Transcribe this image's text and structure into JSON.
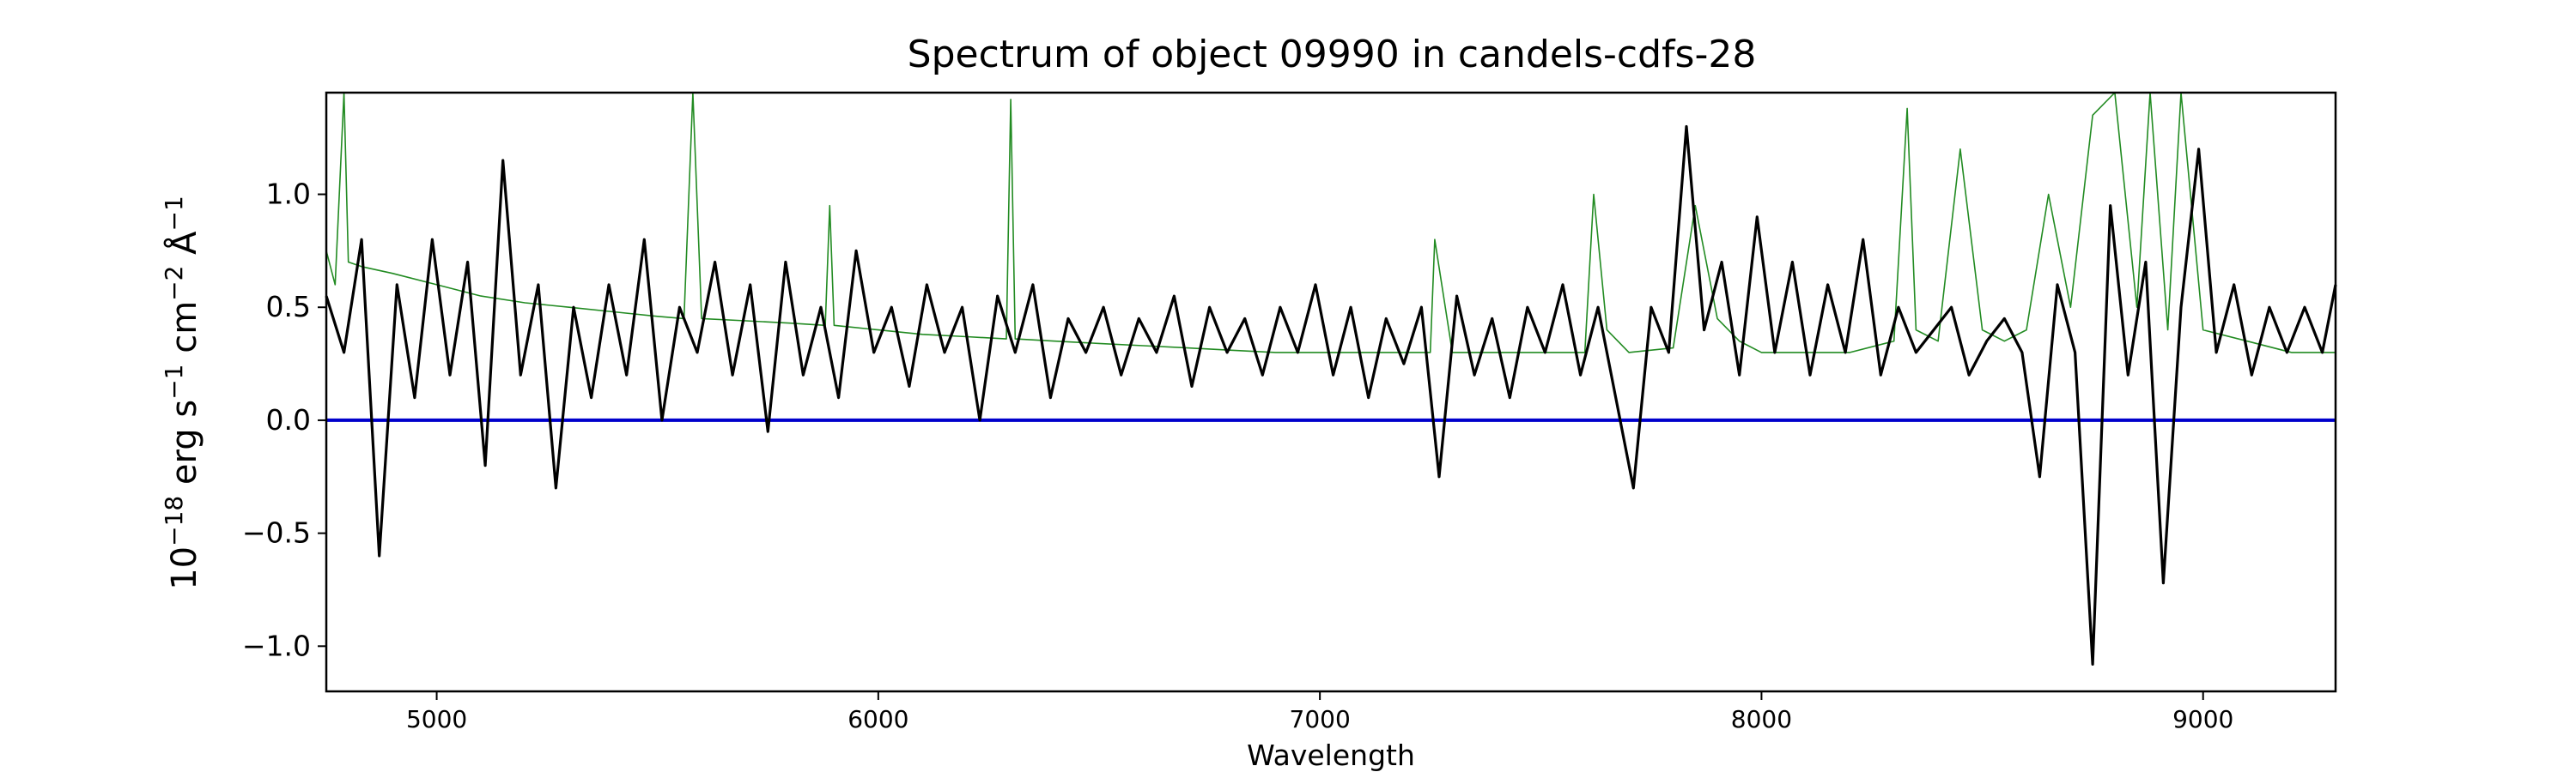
{
  "chart_data": {
    "type": "line",
    "title": "Spectrum of object 09990 in candels-cdfs-28",
    "xlabel": "Wavelength",
    "ylabel": {
      "base": "10",
      "exp1": "−18",
      "unit1": " erg s",
      "exp2": "−1",
      "unit2": " cm",
      "exp3": "−2",
      "unit3": " Å",
      "exp4": "−1"
    },
    "xlim": [
      4750,
      9300
    ],
    "ylim": [
      -1.2,
      1.45
    ],
    "x_ticks": [
      5000,
      6000,
      7000,
      8000,
      9000
    ],
    "x_tick_labels": [
      "5000",
      "6000",
      "7000",
      "8000",
      "9000"
    ],
    "y_ticks": [
      -1.0,
      -0.5,
      0.0,
      0.5,
      1.0
    ],
    "y_tick_labels": [
      "−1.0",
      "−0.5",
      "0.0",
      "0.5",
      "1.0"
    ],
    "grid": false,
    "colors": {
      "flux": "#000000",
      "error": "#228B22",
      "zero": "#0000CC"
    },
    "series": [
      {
        "role": "flux",
        "x": [
          4750,
          4790,
          4830,
          4870,
          4910,
          4950,
          4990,
          5030,
          5070,
          5110,
          5150,
          5190,
          5230,
          5270,
          5310,
          5350,
          5390,
          5430,
          5470,
          5510,
          5550,
          5590,
          5630,
          5670,
          5710,
          5750,
          5790,
          5830,
          5870,
          5910,
          5950,
          5990,
          6030,
          6070,
          6110,
          6150,
          6190,
          6230,
          6270,
          6310,
          6350,
          6390,
          6430,
          6470,
          6510,
          6550,
          6590,
          6630,
          6670,
          6710,
          6750,
          6790,
          6830,
          6870,
          6910,
          6950,
          6990,
          7030,
          7070,
          7110,
          7150,
          7190,
          7230,
          7270,
          7310,
          7350,
          7390,
          7430,
          7470,
          7510,
          7550,
          7590,
          7630,
          7670,
          7710,
          7750,
          7790,
          7830,
          7870,
          7910,
          7950,
          7990,
          8030,
          8070,
          8110,
          8150,
          8190,
          8230,
          8270,
          8310,
          8350,
          8390,
          8430,
          8470,
          8510,
          8550,
          8590,
          8630,
          8670,
          8710,
          8750,
          8790,
          8830,
          8870,
          8910,
          8950,
          8990,
          9030,
          9070,
          9110,
          9150,
          9190,
          9230,
          9270,
          9300
        ],
        "y": [
          0.55,
          0.3,
          0.8,
          -0.6,
          0.6,
          0.1,
          0.8,
          0.2,
          0.7,
          -0.2,
          1.15,
          0.2,
          0.6,
          -0.3,
          0.5,
          0.1,
          0.6,
          0.2,
          0.8,
          0.0,
          0.5,
          0.3,
          0.7,
          0.2,
          0.6,
          -0.05,
          0.7,
          0.2,
          0.5,
          0.1,
          0.75,
          0.3,
          0.5,
          0.15,
          0.6,
          0.3,
          0.5,
          0.0,
          0.55,
          0.3,
          0.6,
          0.1,
          0.45,
          0.3,
          0.5,
          0.2,
          0.45,
          0.3,
          0.55,
          0.15,
          0.5,
          0.3,
          0.45,
          0.2,
          0.5,
          0.3,
          0.6,
          0.2,
          0.5,
          0.1,
          0.45,
          0.25,
          0.5,
          -0.25,
          0.55,
          0.2,
          0.45,
          0.1,
          0.5,
          0.3,
          0.6,
          0.2,
          0.5,
          0.1,
          -0.3,
          0.5,
          0.3,
          1.3,
          0.4,
          0.7,
          0.2,
          0.9,
          0.3,
          0.7,
          0.2,
          0.6,
          0.3,
          0.8,
          0.2,
          0.5,
          0.3,
          0.4,
          0.5,
          0.2,
          0.35,
          0.45,
          0.3,
          -0.25,
          0.6,
          0.3,
          -1.08,
          0.95,
          0.2,
          0.7,
          -0.72,
          0.5,
          1.2,
          0.3,
          0.6,
          0.2,
          0.5,
          0.3,
          0.5,
          0.3,
          0.6
        ]
      },
      {
        "role": "error",
        "x": [
          4750,
          4770,
          4790,
          4800,
          4830,
          4900,
          5000,
          5100,
          5200,
          5300,
          5400,
          5500,
          5560,
          5580,
          5600,
          5700,
          5800,
          5880,
          5890,
          5900,
          6000,
          6100,
          6200,
          6290,
          6300,
          6310,
          6400,
          6500,
          6600,
          6700,
          6800,
          6900,
          7000,
          7100,
          7200,
          7250,
          7260,
          7300,
          7400,
          7500,
          7600,
          7620,
          7650,
          7700,
          7800,
          7850,
          7900,
          7950,
          8000,
          8100,
          8200,
          8300,
          8330,
          8350,
          8400,
          8450,
          8500,
          8550,
          8600,
          8650,
          8700,
          8750,
          8800,
          8850,
          8880,
          8920,
          8950,
          9000,
          9100,
          9200,
          9300
        ],
        "y": [
          0.75,
          0.6,
          1.45,
          0.7,
          0.68,
          0.65,
          0.6,
          0.55,
          0.52,
          0.5,
          0.48,
          0.46,
          0.45,
          1.45,
          0.45,
          0.44,
          0.43,
          0.42,
          0.95,
          0.42,
          0.4,
          0.38,
          0.37,
          0.36,
          1.42,
          0.36,
          0.35,
          0.34,
          0.33,
          0.32,
          0.31,
          0.3,
          0.3,
          0.3,
          0.3,
          0.3,
          0.8,
          0.3,
          0.3,
          0.3,
          0.3,
          1.0,
          0.4,
          0.3,
          0.32,
          0.95,
          0.45,
          0.35,
          0.3,
          0.3,
          0.3,
          0.35,
          1.38,
          0.4,
          0.35,
          1.2,
          0.4,
          0.35,
          0.4,
          1.0,
          0.5,
          1.35,
          1.45,
          0.5,
          1.45,
          0.4,
          1.45,
          0.4,
          0.35,
          0.3,
          0.3
        ]
      }
    ]
  }
}
